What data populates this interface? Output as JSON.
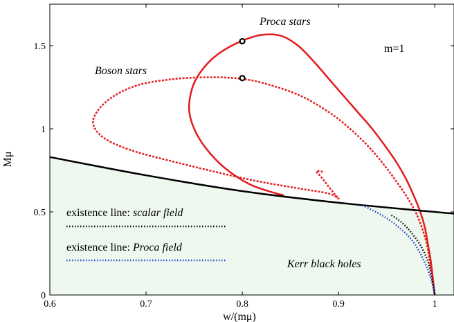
{
  "chart_data": {
    "type": "line",
    "xlabel": "w/(mμ)",
    "ylabel": "Mμ",
    "xlim": [
      0.6,
      1.02
    ],
    "ylim": [
      0,
      1.75
    ],
    "xticks": [
      0.6,
      0.7,
      0.8,
      0.9,
      1
    ],
    "xtick_labels": [
      "0.6",
      "0.7",
      "0.8",
      "0.9",
      "1"
    ],
    "yticks": [
      0,
      0.5,
      1,
      1.5
    ],
    "ytick_labels": [
      "0",
      "0.5",
      "1",
      "1.5"
    ],
    "grid": false,
    "colors": {
      "proca": "#e41a1c",
      "boson": "#e41a1c",
      "kerr_line": "#000000",
      "scalar_existence": "#000000",
      "proca_existence": "#1f3fd1",
      "kerr_fill": "#eef8ee",
      "marker": "#000000"
    },
    "annotations": {
      "proca_stars": "Proca stars",
      "boson_stars": "Boson stars",
      "m_label": "m=1",
      "kerr_black_holes": "Kerr black holes"
    },
    "legend": {
      "placement": "bottom-left",
      "scalar_prefix": "existence line: ",
      "scalar_field": "scalar field",
      "proca_prefix": "existence line: ",
      "proca_field": "Proca field"
    },
    "series": [
      {
        "key": "proca_stars",
        "style": "solid",
        "points": [
          [
            1.0,
            0.0
          ],
          [
            0.998,
            0.1
          ],
          [
            0.996,
            0.2
          ],
          [
            0.993,
            0.3
          ],
          [
            0.99,
            0.4
          ],
          [
            0.985,
            0.5
          ],
          [
            0.978,
            0.6
          ],
          [
            0.97,
            0.7
          ],
          [
            0.96,
            0.8
          ],
          [
            0.948,
            0.9
          ],
          [
            0.935,
            1.0
          ],
          [
            0.92,
            1.1
          ],
          [
            0.905,
            1.2
          ],
          [
            0.89,
            1.3
          ],
          [
            0.875,
            1.4
          ],
          [
            0.858,
            1.5
          ],
          [
            0.84,
            1.56
          ],
          [
            0.82,
            1.565
          ],
          [
            0.8,
            1.53
          ],
          [
            0.78,
            1.47
          ],
          [
            0.765,
            1.4
          ],
          [
            0.752,
            1.3
          ],
          [
            0.746,
            1.2
          ],
          [
            0.745,
            1.1
          ],
          [
            0.75,
            1.0
          ],
          [
            0.76,
            0.9
          ],
          [
            0.775,
            0.8
          ],
          [
            0.792,
            0.72
          ],
          [
            0.81,
            0.66
          ],
          [
            0.83,
            0.62
          ],
          [
            0.843,
            0.6
          ]
        ]
      },
      {
        "key": "boson_stars",
        "style": "dashed",
        "points": [
          [
            1.0,
            0.0
          ],
          [
            0.998,
            0.1
          ],
          [
            0.995,
            0.2
          ],
          [
            0.992,
            0.3
          ],
          [
            0.987,
            0.4
          ],
          [
            0.98,
            0.5
          ],
          [
            0.97,
            0.6
          ],
          [
            0.958,
            0.7
          ],
          [
            0.945,
            0.8
          ],
          [
            0.93,
            0.9
          ],
          [
            0.912,
            1.0
          ],
          [
            0.89,
            1.1
          ],
          [
            0.86,
            1.2
          ],
          [
            0.825,
            1.27
          ],
          [
            0.8,
            1.3
          ],
          [
            0.77,
            1.31
          ],
          [
            0.73,
            1.3
          ],
          [
            0.69,
            1.26
          ],
          [
            0.66,
            1.17
          ],
          [
            0.645,
            1.05
          ],
          [
            0.655,
            0.95
          ],
          [
            0.685,
            0.87
          ],
          [
            0.73,
            0.8
          ],
          [
            0.78,
            0.73
          ],
          [
            0.82,
            0.68
          ],
          [
            0.86,
            0.64
          ],
          [
            0.89,
            0.61
          ],
          [
            0.9,
            0.58
          ],
          [
            0.897,
            0.6
          ],
          [
            0.89,
            0.65
          ],
          [
            0.882,
            0.71
          ],
          [
            0.877,
            0.745
          ],
          [
            0.885,
            0.74
          ]
        ]
      },
      {
        "key": "kerr_existence",
        "style": "solid",
        "points": [
          [
            0.6,
            0.83
          ],
          [
            0.7,
            0.72
          ],
          [
            0.8,
            0.625
          ],
          [
            0.9,
            0.555
          ],
          [
            1.0,
            0.5
          ],
          [
            1.02,
            0.49
          ]
        ]
      },
      {
        "key": "scalar_existence",
        "style": "dotted",
        "points": [
          [
            0.955,
            0.48
          ],
          [
            0.965,
            0.44
          ],
          [
            0.975,
            0.38
          ],
          [
            0.985,
            0.3
          ],
          [
            0.993,
            0.2
          ],
          [
            0.997,
            0.1
          ],
          [
            1.0,
            0.0
          ]
        ]
      },
      {
        "key": "proca_existence",
        "style": "dotted",
        "points": [
          [
            0.925,
            0.54
          ],
          [
            0.945,
            0.48
          ],
          [
            0.96,
            0.42
          ],
          [
            0.975,
            0.34
          ],
          [
            0.985,
            0.25
          ],
          [
            0.993,
            0.15
          ],
          [
            0.998,
            0.06
          ],
          [
            1.0,
            0.0
          ]
        ]
      }
    ],
    "markers": [
      {
        "x": 0.8,
        "y": 1.527
      },
      {
        "x": 0.8,
        "y": 1.305
      }
    ]
  }
}
